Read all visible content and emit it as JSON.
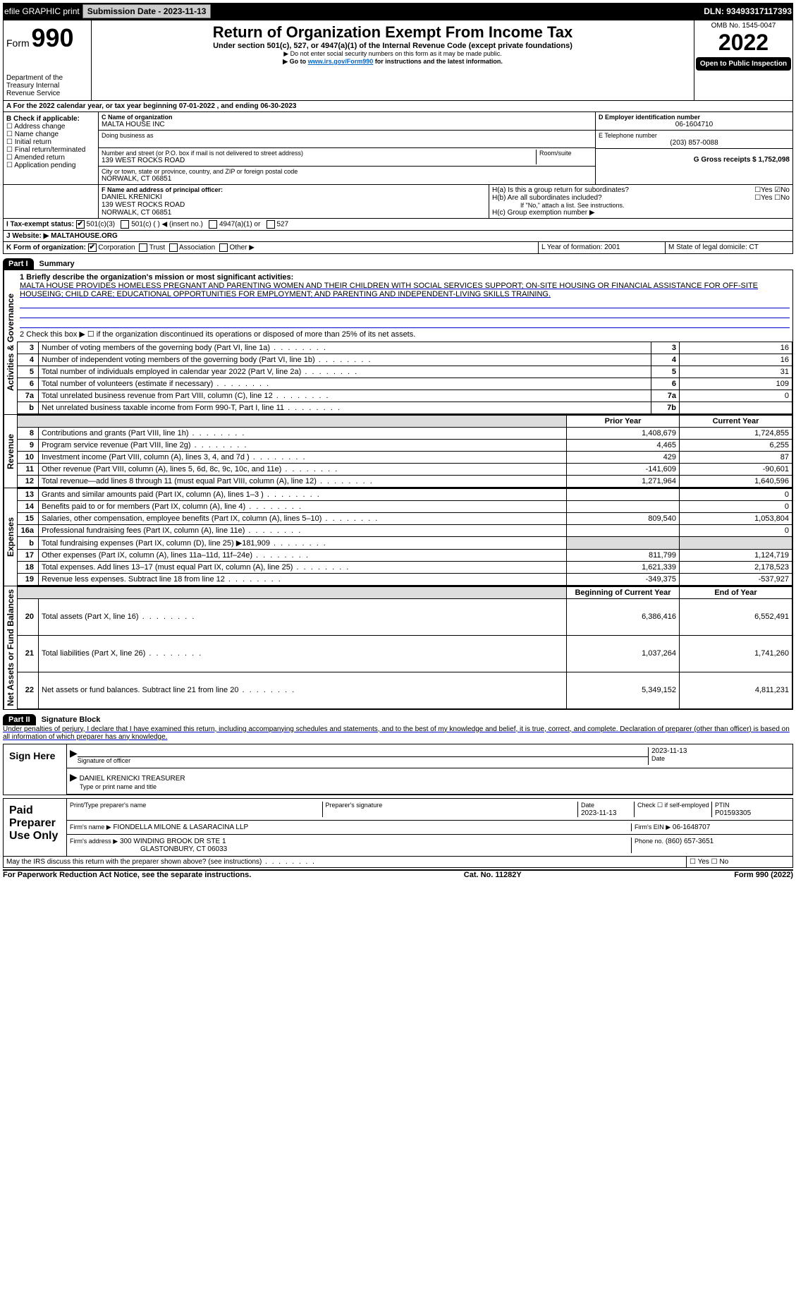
{
  "topbar": {
    "efile": "efile GRAPHIC print",
    "submission_label": "Submission Date - 2023-11-13",
    "dln": "DLN: 93493317117393"
  },
  "header": {
    "form_label": "Form",
    "form_no": "990",
    "title": "Return of Organization Exempt From Income Tax",
    "subtitle": "Under section 501(c), 527, or 4947(a)(1) of the Internal Revenue Code (except private foundations)",
    "note1": "▶ Do not enter social security numbers on this form as it may be made public.",
    "note2_prefix": "▶ Go to ",
    "note2_link": "www.irs.gov/Form990",
    "note2_suffix": " for instructions and the latest information.",
    "dept": "Department of the Treasury\nInternal Revenue Service",
    "omb": "OMB No. 1545-0047",
    "year": "2022",
    "open": "Open to Public Inspection"
  },
  "period": {
    "line": "For the 2022 calendar year, or tax year beginning 07-01-2022    , and ending 06-30-2023"
  },
  "sectionB": {
    "label": "B Check if applicable:",
    "opts": [
      "Address change",
      "Name change",
      "Initial return",
      "Final return/terminated",
      "Amended return",
      "Application pending"
    ]
  },
  "sectionC": {
    "name_label": "C Name of organization",
    "name": "MALTA HOUSE INC",
    "dba_label": "Doing business as",
    "street_label": "Number and street (or P.O. box if mail is not delivered to street address)",
    "room_label": "Room/suite",
    "street": "139 WEST ROCKS ROAD",
    "city_label": "City or town, state or province, country, and ZIP or foreign postal code",
    "city": "NORWALK, CT  06851"
  },
  "sectionD": {
    "label": "D Employer identification number",
    "value": "06-1604710"
  },
  "sectionE": {
    "label": "E Telephone number",
    "value": "(203) 857-0088"
  },
  "sectionG": {
    "label": "G Gross receipts $ 1,752,098"
  },
  "sectionF": {
    "label": "F Name and address of principal officer:",
    "name": "DANIEL KRENICKI",
    "street": "139 WEST ROCKS ROAD",
    "city": "NORWALK, CT  06851"
  },
  "sectionH": {
    "a": "H(a)  Is this a group return for subordinates?",
    "b": "H(b)  Are all subordinates included?",
    "note": "If \"No,\" attach a list. See instructions.",
    "c": "H(c)  Group exemption number ▶"
  },
  "sectionI": {
    "label": "I   Tax-exempt status:",
    "opt1": "501(c)(3)",
    "opt2": "501(c) (  ) ◀ (insert no.)",
    "opt3": "4947(a)(1) or",
    "opt4": "527"
  },
  "sectionJ": {
    "label": "J   Website: ▶",
    "value": "MALTAHOUSE.ORG"
  },
  "sectionK": {
    "label": "K Form of organization:",
    "opts": [
      "Corporation",
      "Trust",
      "Association",
      "Other ▶"
    ]
  },
  "sectionL": {
    "label": "L Year of formation: 2001"
  },
  "sectionM": {
    "label": "M State of legal domicile: CT"
  },
  "part1": {
    "header": "Part I",
    "title": "Summary",
    "q1": "1  Briefly describe the organization's mission or most significant activities:",
    "mission": "MALTA HOUSE PROVIDES HOMELESS PREGNANT AND PARENTING WOMEN AND THEIR CHILDREN WITH SOCIAL SERVICES SUPPORT; ON-SITE HOUSING OR FINANCIAL ASSISTANCE FOR OFF-SITE HOUSEING; CHILD CARE; EDUCATIONAL OPPORTUNITIES FOR EMPLOYMENT; AND PARENTING AND INDEPENDENT-LIVING SKILLS TRAINING.",
    "q2": "2   Check this box ▶ ☐ if the organization discontinued its operations or disposed of more than 25% of its net assets.",
    "rows_gov": [
      {
        "n": "3",
        "d": "Number of voting members of the governing body (Part VI, line 1a)",
        "box": "3",
        "v": "16"
      },
      {
        "n": "4",
        "d": "Number of independent voting members of the governing body (Part VI, line 1b)",
        "box": "4",
        "v": "16"
      },
      {
        "n": "5",
        "d": "Total number of individuals employed in calendar year 2022 (Part V, line 2a)",
        "box": "5",
        "v": "31"
      },
      {
        "n": "6",
        "d": "Total number of volunteers (estimate if necessary)",
        "box": "6",
        "v": "109"
      },
      {
        "n": "7a",
        "d": "Total unrelated business revenue from Part VIII, column (C), line 12",
        "box": "7a",
        "v": "0"
      },
      {
        "n": "b",
        "d": "Net unrelated business taxable income from Form 990-T, Part I, line 11",
        "box": "7b",
        "v": ""
      }
    ],
    "col_prior": "Prior Year",
    "col_current": "Current Year",
    "rows_rev": [
      {
        "n": "8",
        "d": "Contributions and grants (Part VIII, line 1h)",
        "p": "1,408,679",
        "c": "1,724,855"
      },
      {
        "n": "9",
        "d": "Program service revenue (Part VIII, line 2g)",
        "p": "4,465",
        "c": "6,255"
      },
      {
        "n": "10",
        "d": "Investment income (Part VIII, column (A), lines 3, 4, and 7d )",
        "p": "429",
        "c": "87"
      },
      {
        "n": "11",
        "d": "Other revenue (Part VIII, column (A), lines 5, 6d, 8c, 9c, 10c, and 11e)",
        "p": "-141,609",
        "c": "-90,601"
      },
      {
        "n": "12",
        "d": "Total revenue—add lines 8 through 11 (must equal Part VIII, column (A), line 12)",
        "p": "1,271,964",
        "c": "1,640,596"
      }
    ],
    "rows_exp": [
      {
        "n": "13",
        "d": "Grants and similar amounts paid (Part IX, column (A), lines 1–3 )",
        "p": "",
        "c": "0"
      },
      {
        "n": "14",
        "d": "Benefits paid to or for members (Part IX, column (A), line 4)",
        "p": "",
        "c": "0"
      },
      {
        "n": "15",
        "d": "Salaries, other compensation, employee benefits (Part IX, column (A), lines 5–10)",
        "p": "809,540",
        "c": "1,053,804"
      },
      {
        "n": "16a",
        "d": "Professional fundraising fees (Part IX, column (A), line 11e)",
        "p": "",
        "c": "0"
      },
      {
        "n": "b",
        "d": "Total fundraising expenses (Part IX, column (D), line 25) ▶181,909",
        "p": "GRAY",
        "c": "GRAY"
      },
      {
        "n": "17",
        "d": "Other expenses (Part IX, column (A), lines 11a–11d, 11f–24e)",
        "p": "811,799",
        "c": "1,124,719"
      },
      {
        "n": "18",
        "d": "Total expenses. Add lines 13–17 (must equal Part IX, column (A), line 25)",
        "p": "1,621,339",
        "c": "2,178,523"
      },
      {
        "n": "19",
        "d": "Revenue less expenses. Subtract line 18 from line 12",
        "p": "-349,375",
        "c": "-537,927"
      }
    ],
    "col_begin": "Beginning of Current Year",
    "col_end": "End of Year",
    "rows_net": [
      {
        "n": "20",
        "d": "Total assets (Part X, line 16)",
        "p": "6,386,416",
        "c": "6,552,491"
      },
      {
        "n": "21",
        "d": "Total liabilities (Part X, line 26)",
        "p": "1,037,264",
        "c": "1,741,260"
      },
      {
        "n": "22",
        "d": "Net assets or fund balances. Subtract line 21 from line 20",
        "p": "5,349,152",
        "c": "4,811,231"
      }
    ],
    "side_gov": "Activities & Governance",
    "side_rev": "Revenue",
    "side_exp": "Expenses",
    "side_net": "Net Assets or Fund Balances"
  },
  "part2": {
    "header": "Part II",
    "title": "Signature Block",
    "penalty": "Under penalties of perjury, I declare that I have examined this return, including accompanying schedules and statements, and to the best of my knowledge and belief, it is true, correct, and complete. Declaration of preparer (other than officer) is based on all information of which preparer has any knowledge.",
    "sign_here": "Sign Here",
    "sig_officer": "Signature of officer",
    "date": "Date",
    "date_val1": "2023-11-13",
    "officer_name": "DANIEL KRENICKI  TREASURER",
    "type_name": "Type or print name and title",
    "paid": "Paid Preparer Use Only",
    "prep_name_label": "Print/Type preparer's name",
    "prep_sig_label": "Preparer's signature",
    "prep_date": "2023-11-13",
    "check_if": "Check ☐ if self-employed",
    "ptin_label": "PTIN",
    "ptin": "P01593305",
    "firm_name_label": "Firm's name    ▶",
    "firm_name": "FIONDELLA MILONE & LASARACINA LLP",
    "firm_ein_label": "Firm's EIN ▶",
    "firm_ein": "06-1648707",
    "firm_addr_label": "Firm's address ▶",
    "firm_addr1": "300 WINDING BROOK DR STE 1",
    "firm_addr2": "GLASTONBURY, CT  06033",
    "phone_label": "Phone no.",
    "phone": "(860) 657-3651",
    "discuss": "May the IRS discuss this return with the preparer shown above? (see instructions)"
  },
  "footer": {
    "left": "For Paperwork Reduction Act Notice, see the separate instructions.",
    "mid": "Cat. No. 11282Y",
    "right": "Form 990 (2022)"
  }
}
